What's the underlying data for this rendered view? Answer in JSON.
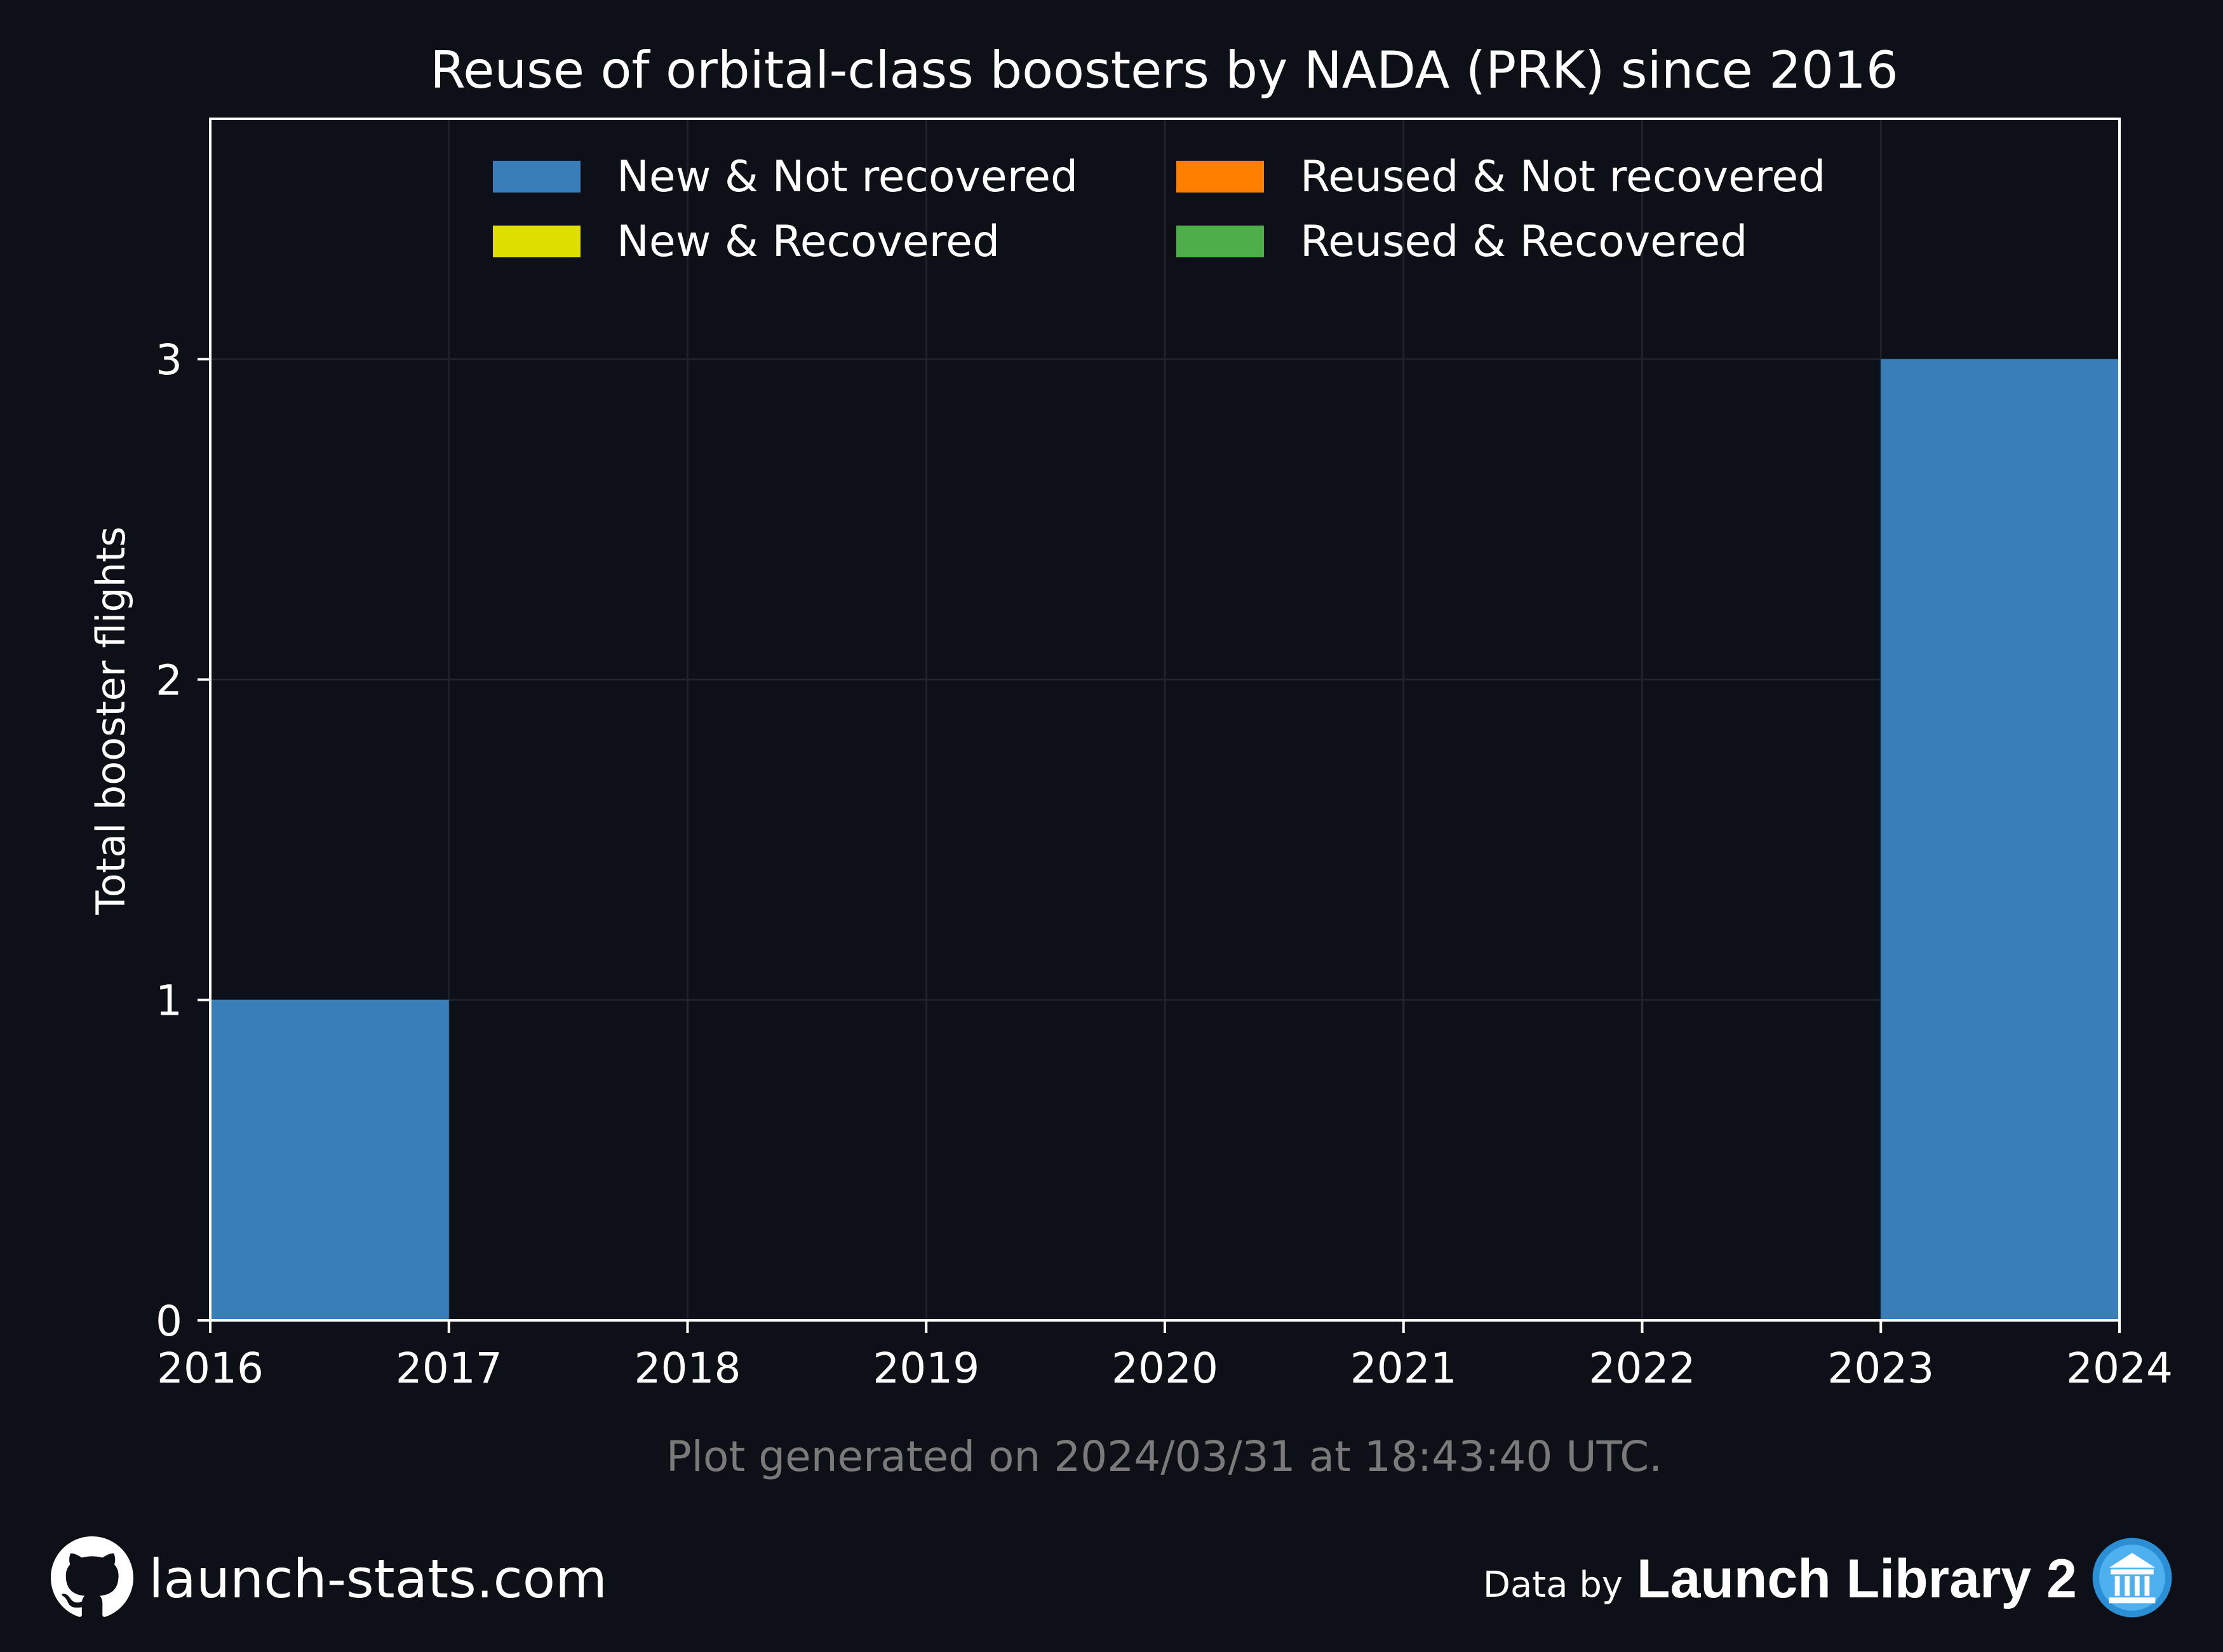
{
  "footer": {
    "site": "launch-stats.com",
    "site_icon": "github-icon",
    "data_by": "Data by",
    "brand": "Launch Library 2",
    "brand_icon": "launch-library-logo-icon"
  },
  "chart_data": {
    "type": "bar",
    "stacked": true,
    "title": "Reuse of orbital-class boosters by NADA (PRK) since 2016",
    "xlabel": "",
    "ylabel": "Total booster flights",
    "caption": "Plot generated on 2024/03/31 at 18:43:40 UTC.",
    "x_ticks": [
      "2016",
      "2017",
      "2018",
      "2019",
      "2020",
      "2021",
      "2022",
      "2023",
      "2024"
    ],
    "bins": [
      {
        "start": "2016",
        "end": "2017"
      },
      {
        "start": "2017",
        "end": "2018"
      },
      {
        "start": "2018",
        "end": "2019"
      },
      {
        "start": "2019",
        "end": "2020"
      },
      {
        "start": "2020",
        "end": "2021"
      },
      {
        "start": "2021",
        "end": "2022"
      },
      {
        "start": "2022",
        "end": "2023"
      },
      {
        "start": "2023",
        "end": "2024"
      }
    ],
    "xlim": [
      "2016",
      "2024"
    ],
    "ylim": [
      0,
      3.75
    ],
    "y_ticks": [
      0,
      1,
      2,
      3
    ],
    "grid": true,
    "legend_position": "top-center",
    "legend_columns": 2,
    "series": [
      {
        "name": "New & Not recovered",
        "color": "#3a7eb8",
        "values": [
          1,
          0,
          0,
          0,
          0,
          0,
          0,
          3
        ]
      },
      {
        "name": "New & Recovered",
        "color": "#dede00",
        "values": [
          0,
          0,
          0,
          0,
          0,
          0,
          0,
          0
        ]
      },
      {
        "name": "Reused & Not recovered",
        "color": "#ff7f00",
        "values": [
          0,
          0,
          0,
          0,
          0,
          0,
          0,
          0
        ]
      },
      {
        "name": "Reused & Recovered",
        "color": "#4daf4a",
        "values": [
          0,
          0,
          0,
          0,
          0,
          0,
          0,
          0
        ]
      }
    ],
    "colors": {
      "background": "#0d1017",
      "axes": "#ffffff",
      "grid": "#1e232b",
      "caption": "#7a7a7a"
    }
  }
}
